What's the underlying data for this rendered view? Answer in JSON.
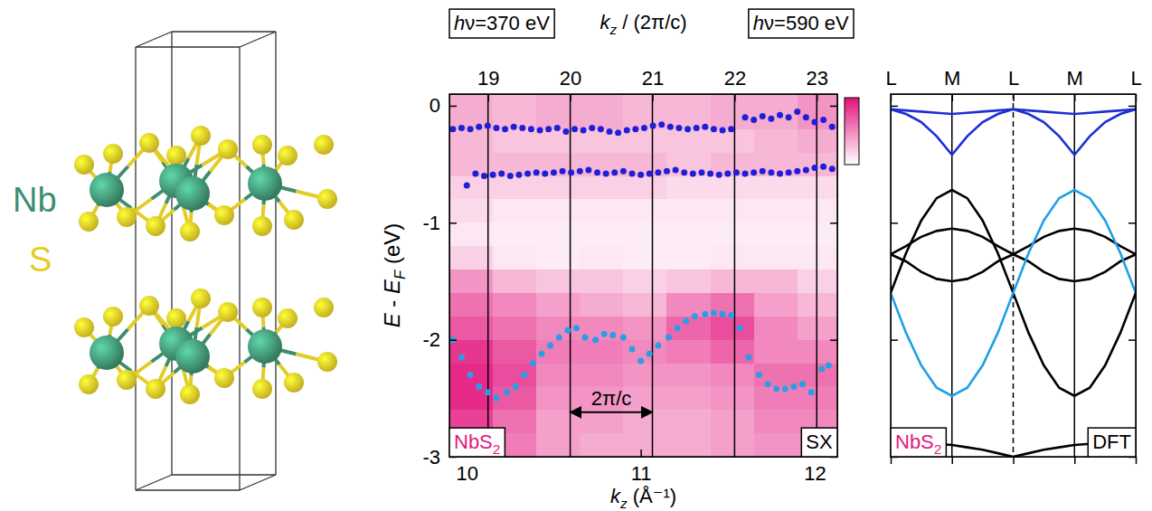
{
  "structure": {
    "labels": [
      {
        "text": "Nb",
        "color": "#3e8d6f"
      },
      {
        "text": "S",
        "color": "#e3cc25"
      }
    ]
  },
  "chart_data": [
    {
      "type": "scatter",
      "xlabel": "kz (Å⁻¹)",
      "x2label": "kz / (2π/c)",
      "ylabel": "E - EF (eV)",
      "xlim": [
        9.9,
        12.13
      ],
      "xticks": [
        10,
        11,
        12
      ],
      "x2lim": [
        18.53,
        23.25
      ],
      "x2ticks": [
        19,
        20,
        21,
        22,
        23
      ],
      "ylim": [
        -3,
        0.1
      ],
      "yticks": [
        -3,
        -2,
        -1,
        0
      ],
      "grid": true,
      "marker": "circle",
      "energy_labels": [
        "hν=370 eV",
        "hν=590 eV"
      ],
      "corner_labels": [
        {
          "text": "NbS2",
          "color": "#e4187f"
        },
        {
          "text": "SX",
          "color": "#000000"
        }
      ],
      "arrow_label": {
        "text": "2π/c",
        "x2": [
          20,
          21
        ],
        "y": -2.62
      },
      "heatmap": {
        "x_edges": [
          9.9,
          10.15,
          10.4,
          10.65,
          10.9,
          11.15,
          11.4,
          11.65,
          11.9,
          12.13
        ],
        "y_edges": [
          0.1,
          -0.2,
          -0.4,
          -0.6,
          -0.8,
          -1.0,
          -1.2,
          -1.4,
          -1.6,
          -1.8,
          -2.0,
          -2.2,
          -2.4,
          -2.6,
          -2.8,
          -3.0
        ],
        "z": [
          [
            0.35,
            0.3,
            0.35,
            0.35,
            0.3,
            0.3,
            0.35,
            0.35,
            0.45
          ],
          [
            0.3,
            0.25,
            0.25,
            0.25,
            0.25,
            0.25,
            0.25,
            0.3,
            0.35
          ],
          [
            0.3,
            0.3,
            0.3,
            0.3,
            0.3,
            0.25,
            0.3,
            0.3,
            0.3
          ],
          [
            0.2,
            0.2,
            0.2,
            0.2,
            0.2,
            0.15,
            0.15,
            0.15,
            0.15
          ],
          [
            0.15,
            0.1,
            0.1,
            0.1,
            0.1,
            0.1,
            0.1,
            0.1,
            0.1
          ],
          [
            0.1,
            0.08,
            0.08,
            0.08,
            0.08,
            0.08,
            0.08,
            0.08,
            0.08
          ],
          [
            0.2,
            0.1,
            0.08,
            0.1,
            0.08,
            0.08,
            0.1,
            0.1,
            0.1
          ],
          [
            0.45,
            0.3,
            0.25,
            0.25,
            0.2,
            0.25,
            0.3,
            0.3,
            0.2
          ],
          [
            0.6,
            0.5,
            0.4,
            0.35,
            0.3,
            0.5,
            0.6,
            0.4,
            0.3
          ],
          [
            0.7,
            0.6,
            0.5,
            0.5,
            0.45,
            0.65,
            0.75,
            0.5,
            0.4
          ],
          [
            0.85,
            0.7,
            0.55,
            0.55,
            0.5,
            0.55,
            0.65,
            0.5,
            0.5
          ],
          [
            0.9,
            0.75,
            0.5,
            0.5,
            0.45,
            0.45,
            0.5,
            0.6,
            0.6
          ],
          [
            0.9,
            0.7,
            0.45,
            0.45,
            0.4,
            0.4,
            0.45,
            0.55,
            0.55
          ],
          [
            0.8,
            0.6,
            0.4,
            0.4,
            0.35,
            0.35,
            0.4,
            0.5,
            0.5
          ],
          [
            0.75,
            0.55,
            0.4,
            0.35,
            0.35,
            0.35,
            0.4,
            0.45,
            0.45
          ]
        ],
        "zlim": [
          0,
          1
        ],
        "color": "#e3127c"
      },
      "series": [
        {
          "color": "#1f1fd8",
          "x": [
            9.92,
            9.97,
            10.02,
            10.07,
            10.12,
            10.17,
            10.22,
            10.27,
            10.32,
            10.37,
            10.42,
            10.47,
            10.52,
            10.57,
            10.62,
            10.67,
            10.72,
            10.77,
            10.82,
            10.87,
            10.92,
            10.97,
            11.02,
            11.07,
            11.12,
            11.17,
            11.22,
            11.27,
            11.32,
            11.37,
            11.42,
            11.47,
            11.52,
            11.6,
            11.65,
            11.7,
            11.75,
            11.8,
            11.85,
            11.9,
            11.95,
            12.0,
            12.05,
            12.1
          ],
          "values": [
            -0.2,
            -0.19,
            -0.2,
            -0.18,
            -0.17,
            -0.19,
            -0.2,
            -0.18,
            -0.19,
            -0.2,
            -0.21,
            -0.2,
            -0.19,
            -0.22,
            -0.2,
            -0.21,
            -0.19,
            -0.2,
            -0.22,
            -0.23,
            -0.21,
            -0.2,
            -0.19,
            -0.17,
            -0.16,
            -0.18,
            -0.19,
            -0.2,
            -0.19,
            -0.18,
            -0.2,
            -0.21,
            -0.2,
            -0.1,
            -0.12,
            -0.09,
            -0.11,
            -0.08,
            -0.1,
            -0.05,
            -0.1,
            -0.14,
            -0.12,
            -0.18
          ]
        },
        {
          "color": "#1f1fd8",
          "x": [
            10.0,
            10.05,
            10.1,
            10.15,
            10.2,
            10.25,
            10.3,
            10.35,
            10.4,
            10.45,
            10.5,
            10.55,
            10.6,
            10.65,
            10.7,
            10.75,
            10.8,
            10.85,
            10.9,
            10.95,
            11.0,
            11.05,
            11.1,
            11.15,
            11.2,
            11.25,
            11.3,
            11.35,
            11.4,
            11.45,
            11.5,
            11.55,
            11.6,
            11.65,
            11.7,
            11.75,
            11.8,
            11.85,
            11.9,
            11.95,
            12.0,
            12.05,
            12.1
          ],
          "values": [
            -0.68,
            -0.58,
            -0.6,
            -0.59,
            -0.58,
            -0.6,
            -0.59,
            -0.58,
            -0.57,
            -0.58,
            -0.57,
            -0.56,
            -0.57,
            -0.56,
            -0.55,
            -0.57,
            -0.58,
            -0.57,
            -0.56,
            -0.58,
            -0.59,
            -0.58,
            -0.57,
            -0.56,
            -0.55,
            -0.57,
            -0.58,
            -0.57,
            -0.58,
            -0.59,
            -0.58,
            -0.57,
            -0.58,
            -0.57,
            -0.56,
            -0.57,
            -0.58,
            -0.57,
            -0.56,
            -0.55,
            -0.53,
            -0.52,
            -0.54
          ]
        },
        {
          "color": "#2b9ee3",
          "x": [
            9.92,
            9.97,
            10.02,
            10.07,
            10.12,
            10.17,
            10.23,
            10.28,
            10.33,
            10.38,
            10.43,
            10.48,
            10.53,
            10.58,
            10.63,
            10.68,
            10.74,
            10.79,
            10.84,
            10.9,
            10.95,
            11.0,
            11.05,
            11.1,
            11.16,
            11.21,
            11.26,
            11.31,
            11.37,
            11.42,
            11.47,
            11.52,
            11.57,
            11.62,
            11.68,
            11.73,
            11.78,
            11.83,
            11.88,
            11.93,
            11.98,
            12.04,
            12.08
          ],
          "values": [
            -2.0,
            -2.15,
            -2.3,
            -2.4,
            -2.45,
            -2.5,
            -2.45,
            -2.4,
            -2.3,
            -2.2,
            -2.12,
            -2.05,
            -1.98,
            -1.92,
            -1.9,
            -1.98,
            -2.0,
            -1.95,
            -1.96,
            -1.98,
            -2.08,
            -2.18,
            -2.12,
            -2.05,
            -1.98,
            -1.9,
            -1.84,
            -1.8,
            -1.78,
            -1.77,
            -1.78,
            -1.79,
            -1.9,
            -2.15,
            -2.3,
            -2.38,
            -2.42,
            -2.42,
            -2.4,
            -2.38,
            -2.45,
            -2.25,
            -2.22
          ]
        }
      ]
    },
    {
      "type": "line",
      "tick_labels": "x",
      "xlim": [
        0,
        4
      ],
      "xticks": [
        {
          "value": 0,
          "label": "L"
        },
        {
          "value": 1,
          "label": "M"
        },
        {
          "value": 2,
          "label": "L"
        },
        {
          "value": 3,
          "label": "M"
        },
        {
          "value": 4,
          "label": "L"
        }
      ],
      "ylim": [
        -3,
        0.1
      ],
      "yticks": [
        -3,
        -2,
        -1,
        0
      ],
      "vlines": [
        {
          "x": 1,
          "line_style": "solid"
        },
        {
          "x": 2,
          "line_style": "dashed"
        },
        {
          "x": 3,
          "line_style": "solid"
        }
      ],
      "corner_labels": [
        {
          "text": "NbS2",
          "color": "#e4187f"
        },
        {
          "text": "DFT",
          "color": "#000000"
        }
      ],
      "x": [
        0,
        0.25,
        0.5,
        0.75,
        1,
        1.25,
        1.5,
        1.75,
        2,
        2.25,
        2.5,
        2.75,
        3,
        3.25,
        3.5,
        3.75,
        4
      ],
      "series": [
        {
          "color": "#000000",
          "values": [
            -1.6,
            -1.26,
            -0.98,
            -0.79,
            -0.72,
            -0.79,
            -0.98,
            -1.26,
            -1.6,
            -1.94,
            -2.22,
            -2.41,
            -2.48,
            -2.41,
            -2.22,
            -1.94,
            -1.6
          ]
        },
        {
          "color": "#000000",
          "values": [
            -1.27,
            -1.2,
            -1.12,
            -1.07,
            -1.05,
            -1.07,
            -1.12,
            -1.2,
            -1.27,
            -1.2,
            -1.12,
            -1.07,
            -1.05,
            -1.07,
            -1.12,
            -1.2,
            -1.27
          ]
        },
        {
          "color": "#000000",
          "values": [
            -1.27,
            -1.33,
            -1.42,
            -1.48,
            -1.5,
            -1.48,
            -1.42,
            -1.33,
            -1.27,
            -1.33,
            -1.42,
            -1.48,
            -1.5,
            -1.48,
            -1.42,
            -1.33,
            -1.27
          ]
        },
        {
          "color": "#000000",
          "values": [
            -2.87,
            -2.87,
            -2.88,
            -2.89,
            -2.9,
            -2.92,
            -2.94,
            -2.97,
            -3.0,
            -2.97,
            -2.94,
            -2.92,
            -2.9,
            -2.89,
            -2.88,
            -2.87,
            -2.87
          ]
        },
        {
          "color": "#1ea0e6",
          "values": [
            -1.6,
            -1.94,
            -2.22,
            -2.41,
            -2.48,
            -2.41,
            -2.22,
            -1.94,
            -1.6,
            -1.26,
            -0.98,
            -0.79,
            -0.72,
            -0.79,
            -0.98,
            -1.26,
            -1.6
          ]
        },
        {
          "color": "#1c2fd2",
          "values": [
            -0.03,
            -0.07,
            -0.14,
            -0.26,
            -0.42,
            -0.26,
            -0.14,
            -0.07,
            -0.03,
            -0.07,
            -0.14,
            -0.26,
            -0.42,
            -0.26,
            -0.14,
            -0.07,
            -0.03
          ]
        },
        {
          "color": "#1c2fd2",
          "values": [
            -0.03,
            -0.04,
            -0.05,
            -0.06,
            -0.07,
            -0.06,
            -0.05,
            -0.04,
            -0.03,
            -0.04,
            -0.05,
            -0.06,
            -0.07,
            -0.06,
            -0.05,
            -0.04,
            -0.03
          ]
        }
      ]
    }
  ]
}
